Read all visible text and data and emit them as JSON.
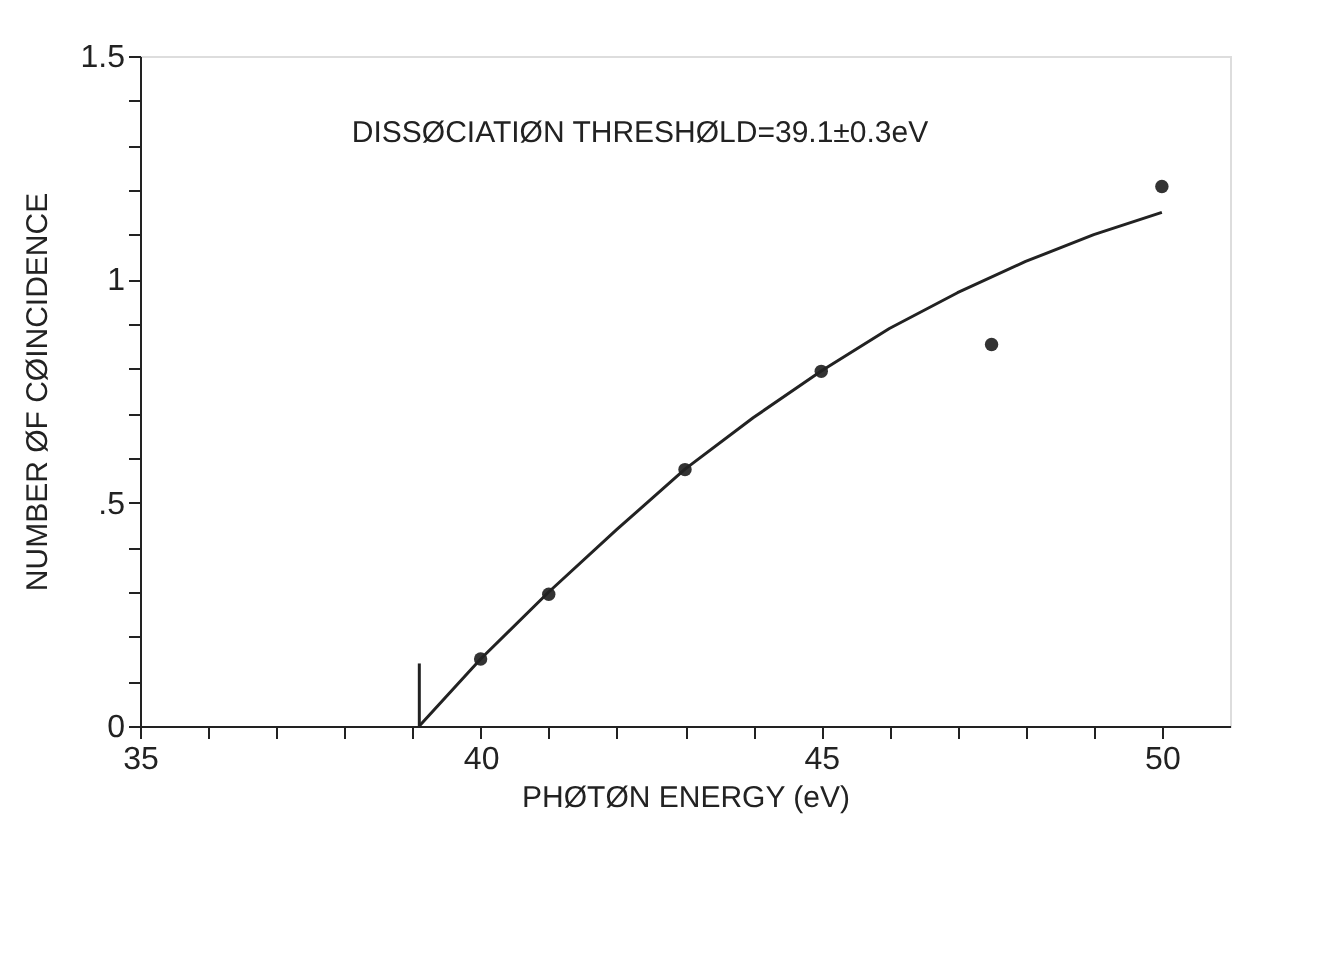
{
  "chart_data": {
    "type": "scatter",
    "xlabel": "PHØTØN ENERGY (eV)",
    "ylabel": "NUMBER ØF CØINCIDENCE",
    "annotations": [
      "DISSØCIATIØN THRESHØLD=39.1±0.3eV"
    ],
    "xlim": [
      35,
      51
    ],
    "ylim": [
      0,
      1.5
    ],
    "xticks": [
      35,
      {
        "value": 36,
        "label": null
      },
      {
        "value": 37,
        "label": null
      },
      {
        "value": 38,
        "label": null
      },
      {
        "value": 39,
        "label": null
      },
      40,
      {
        "value": 41,
        "label": null
      },
      {
        "value": 42,
        "label": null
      },
      {
        "value": 43,
        "label": null
      },
      {
        "value": 44,
        "label": null
      },
      45,
      {
        "value": 46,
        "label": null
      },
      {
        "value": 47,
        "label": null
      },
      {
        "value": 48,
        "label": null
      },
      {
        "value": 49,
        "label": null
      },
      50
    ],
    "yticks": [
      0,
      {
        "value": 0.1,
        "label": null
      },
      {
        "value": 0.2,
        "label": null
      },
      {
        "value": 0.3,
        "label": null
      },
      {
        "value": 0.4,
        "label": null
      },
      {
        "value": 0.5,
        "label": ".5"
      },
      {
        "value": 0.6,
        "label": null
      },
      {
        "value": 0.7,
        "label": null
      },
      {
        "value": 0.8,
        "label": null
      },
      {
        "value": 0.9,
        "label": null
      },
      1,
      {
        "value": 1.1,
        "label": null
      },
      {
        "value": 1.2,
        "label": null
      },
      {
        "value": 1.3,
        "label": null
      },
      {
        "value": 1.4,
        "label": null
      },
      1.5
    ],
    "grid": false,
    "series": [
      {
        "color": "#333333",
        "marker": "circle",
        "x": [
          40,
          41,
          43,
          45,
          47.5,
          50
        ],
        "values": [
          0.15,
          0.295,
          0.574,
          0.794,
          0.854,
          1.208
        ]
      },
      {
        "type": "line",
        "color": "#222222",
        "line_style": "solid",
        "marker": "none",
        "x": [
          39.1,
          40,
          41,
          42,
          43,
          44,
          45,
          46,
          47,
          48,
          49,
          50
        ],
        "values": [
          0,
          0.15,
          0.3,
          0.44,
          0.575,
          0.69,
          0.795,
          0.89,
          0.97,
          1.04,
          1.1,
          1.15
        ]
      },
      {
        "type": "line",
        "color": "#222222",
        "line_style": "solid",
        "marker": "none",
        "x": [
          39.1,
          39.1
        ],
        "values": [
          0,
          0.14
        ]
      }
    ]
  }
}
